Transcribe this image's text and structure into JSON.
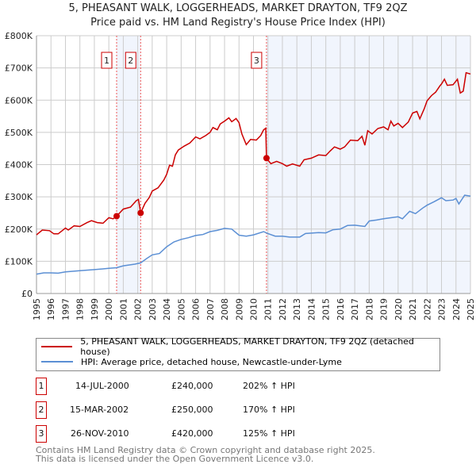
{
  "chart_data": {
    "type": "line",
    "title": "5, PHEASANT WALK, LOGGERHEADS, MARKET DRAYTON, TF9 2QZ",
    "subtitle": "Price paid vs. HM Land Registry's House Price Index (HPI)",
    "xlim": [
      1995,
      2025
    ],
    "ylim": [
      0,
      800000
    ],
    "x_ticks": [
      "1995",
      "1996",
      "1997",
      "1998",
      "1999",
      "2000",
      "2001",
      "2002",
      "2003",
      "2004",
      "2005",
      "2006",
      "2007",
      "2008",
      "2009",
      "2010",
      "2011",
      "2012",
      "2013",
      "2014",
      "2015",
      "2016",
      "2017",
      "2018",
      "2019",
      "2020",
      "2021",
      "2022",
      "2023",
      "2024",
      "2025"
    ],
    "y_ticks": [
      {
        "v": 0,
        "label": "£0"
      },
      {
        "v": 100000,
        "label": "£100K"
      },
      {
        "v": 200000,
        "label": "£200K"
      },
      {
        "v": 300000,
        "label": "£300K"
      },
      {
        "v": 400000,
        "label": "£400K"
      },
      {
        "v": 500000,
        "label": "£500K"
      },
      {
        "v": 600000,
        "label": "£600K"
      },
      {
        "v": 700000,
        "label": "£700K"
      },
      {
        "v": 800000,
        "label": "£800K"
      }
    ],
    "grid": true,
    "series": [
      {
        "name": "5, PHEASANT WALK, LOGGERHEADS, MARKET DRAYTON, TF9 2QZ (detached house)",
        "color": "#cc0000",
        "points": [
          [
            1995,
            182000
          ],
          [
            1995.4,
            197000
          ],
          [
            1995.9,
            195000
          ],
          [
            1996.2,
            185000
          ],
          [
            1996.5,
            185000
          ],
          [
            1997,
            203000
          ],
          [
            1997.2,
            197000
          ],
          [
            1997.6,
            210000
          ],
          [
            1998,
            208000
          ],
          [
            1998.5,
            220000
          ],
          [
            1998.8,
            226000
          ],
          [
            1999.2,
            220000
          ],
          [
            1999.6,
            218000
          ],
          [
            2000,
            235000
          ],
          [
            2000.3,
            232000
          ],
          [
            2000.54,
            240000
          ],
          [
            2001,
            262000
          ],
          [
            2001.5,
            268000
          ],
          [
            2001.9,
            288000
          ],
          [
            2002.05,
            292000
          ],
          [
            2002.2,
            250000
          ],
          [
            2002.5,
            280000
          ],
          [
            2002.8,
            298000
          ],
          [
            2003,
            318000
          ],
          [
            2003.4,
            328000
          ],
          [
            2003.8,
            352000
          ],
          [
            2004,
            370000
          ],
          [
            2004.2,
            398000
          ],
          [
            2004.4,
            395000
          ],
          [
            2004.6,
            430000
          ],
          [
            2004.8,
            445000
          ],
          [
            2005.2,
            457000
          ],
          [
            2005.6,
            467000
          ],
          [
            2006,
            486000
          ],
          [
            2006.3,
            480000
          ],
          [
            2006.7,
            490000
          ],
          [
            2007,
            500000
          ],
          [
            2007.2,
            515000
          ],
          [
            2007.5,
            508000
          ],
          [
            2007.7,
            526000
          ],
          [
            2008,
            535000
          ],
          [
            2008.3,
            545000
          ],
          [
            2008.5,
            533000
          ],
          [
            2008.8,
            543000
          ],
          [
            2009,
            530000
          ],
          [
            2009.2,
            495000
          ],
          [
            2009.5,
            462000
          ],
          [
            2009.8,
            478000
          ],
          [
            2010.2,
            476000
          ],
          [
            2010.5,
            490000
          ],
          [
            2010.7,
            508000
          ],
          [
            2010.85,
            513000
          ],
          [
            2010.9,
            420000
          ],
          [
            2011.2,
            403000
          ],
          [
            2011.6,
            410000
          ],
          [
            2012,
            403000
          ],
          [
            2012.3,
            395000
          ],
          [
            2012.7,
            402000
          ],
          [
            2013.2,
            395000
          ],
          [
            2013.5,
            415000
          ],
          [
            2014,
            420000
          ],
          [
            2014.5,
            430000
          ],
          [
            2015,
            428000
          ],
          [
            2015.3,
            442000
          ],
          [
            2015.6,
            455000
          ],
          [
            2016,
            448000
          ],
          [
            2016.3,
            455000
          ],
          [
            2016.7,
            476000
          ],
          [
            2017.2,
            474000
          ],
          [
            2017.5,
            488000
          ],
          [
            2017.7,
            460000
          ],
          [
            2017.9,
            505000
          ],
          [
            2018.2,
            495000
          ],
          [
            2018.6,
            512000
          ],
          [
            2019,
            517000
          ],
          [
            2019.3,
            508000
          ],
          [
            2019.5,
            535000
          ],
          [
            2019.7,
            520000
          ],
          [
            2020,
            528000
          ],
          [
            2020.3,
            515000
          ],
          [
            2020.7,
            532000
          ],
          [
            2021,
            560000
          ],
          [
            2021.3,
            565000
          ],
          [
            2021.5,
            542000
          ],
          [
            2021.8,
            573000
          ],
          [
            2022,
            598000
          ],
          [
            2022.3,
            614000
          ],
          [
            2022.6,
            625000
          ],
          [
            2022.9,
            645000
          ],
          [
            2023,
            650000
          ],
          [
            2023.2,
            665000
          ],
          [
            2023.4,
            646000
          ],
          [
            2023.8,
            648000
          ],
          [
            2024.1,
            665000
          ],
          [
            2024.3,
            622000
          ],
          [
            2024.5,
            628000
          ],
          [
            2024.7,
            685000
          ],
          [
            2025,
            681000
          ]
        ]
      },
      {
        "name": "HPI: Average price, detached house, Newcastle-under-Lyme",
        "color": "#5b8fd4",
        "points": [
          [
            1995,
            60000
          ],
          [
            1995.5,
            64000
          ],
          [
            1996,
            64000
          ],
          [
            1996.5,
            63000
          ],
          [
            1997,
            67000
          ],
          [
            1998,
            71000
          ],
          [
            1999,
            74000
          ],
          [
            2000,
            78000
          ],
          [
            2000.54,
            80000
          ],
          [
            2001,
            86000
          ],
          [
            2001.8,
            91000
          ],
          [
            2002.2,
            95000
          ],
          [
            2002.6,
            108000
          ],
          [
            2003,
            120000
          ],
          [
            2003.5,
            124000
          ],
          [
            2004,
            145000
          ],
          [
            2004.5,
            160000
          ],
          [
            2005,
            168000
          ],
          [
            2005.5,
            173000
          ],
          [
            2006,
            180000
          ],
          [
            2006.5,
            183000
          ],
          [
            2007,
            192000
          ],
          [
            2007.5,
            196000
          ],
          [
            2008,
            202000
          ],
          [
            2008.5,
            200000
          ],
          [
            2009,
            181000
          ],
          [
            2009.5,
            178000
          ],
          [
            2010,
            182000
          ],
          [
            2010.7,
            192000
          ],
          [
            2011,
            186000
          ],
          [
            2011.5,
            178000
          ],
          [
            2012,
            178000
          ],
          [
            2012.5,
            175000
          ],
          [
            2013.2,
            175000
          ],
          [
            2013.6,
            186000
          ],
          [
            2014.5,
            189000
          ],
          [
            2015,
            188000
          ],
          [
            2015.5,
            198000
          ],
          [
            2016,
            200000
          ],
          [
            2016.5,
            211000
          ],
          [
            2017,
            212000
          ],
          [
            2017.7,
            208000
          ],
          [
            2018,
            225000
          ],
          [
            2018.5,
            228000
          ],
          [
            2019,
            232000
          ],
          [
            2019.5,
            235000
          ],
          [
            2020,
            238000
          ],
          [
            2020.3,
            232000
          ],
          [
            2020.8,
            255000
          ],
          [
            2021.2,
            248000
          ],
          [
            2021.7,
            265000
          ],
          [
            2022,
            274000
          ],
          [
            2022.5,
            285000
          ],
          [
            2023,
            297000
          ],
          [
            2023.3,
            288000
          ],
          [
            2023.8,
            290000
          ],
          [
            2024,
            295000
          ],
          [
            2024.2,
            278000
          ],
          [
            2024.6,
            305000
          ],
          [
            2025,
            302000
          ]
        ]
      }
    ],
    "shaded_ranges": [
      [
        2000.54,
        2002.2
      ],
      [
        2010.9,
        2025
      ]
    ],
    "annotations": [
      {
        "id": "1",
        "x": 2000.54,
        "y": 240000
      },
      {
        "id": "2",
        "x": 2002.2,
        "y": 250000
      },
      {
        "id": "3",
        "x": 2010.9,
        "y": 420000
      }
    ]
  },
  "transactions": [
    {
      "id": "1",
      "date": "14-JUL-2000",
      "price": "£240,000",
      "hpi": "202% ↑ HPI"
    },
    {
      "id": "2",
      "date": "15-MAR-2002",
      "price": "£250,000",
      "hpi": "170% ↑ HPI"
    },
    {
      "id": "3",
      "date": "26-NOV-2010",
      "price": "£420,000",
      "hpi": "125% ↑ HPI"
    }
  ],
  "footer": {
    "line1": "Contains HM Land Registry data © Crown copyright and database right 2025.",
    "line2": "This data is licensed under the Open Government Licence v3.0."
  }
}
